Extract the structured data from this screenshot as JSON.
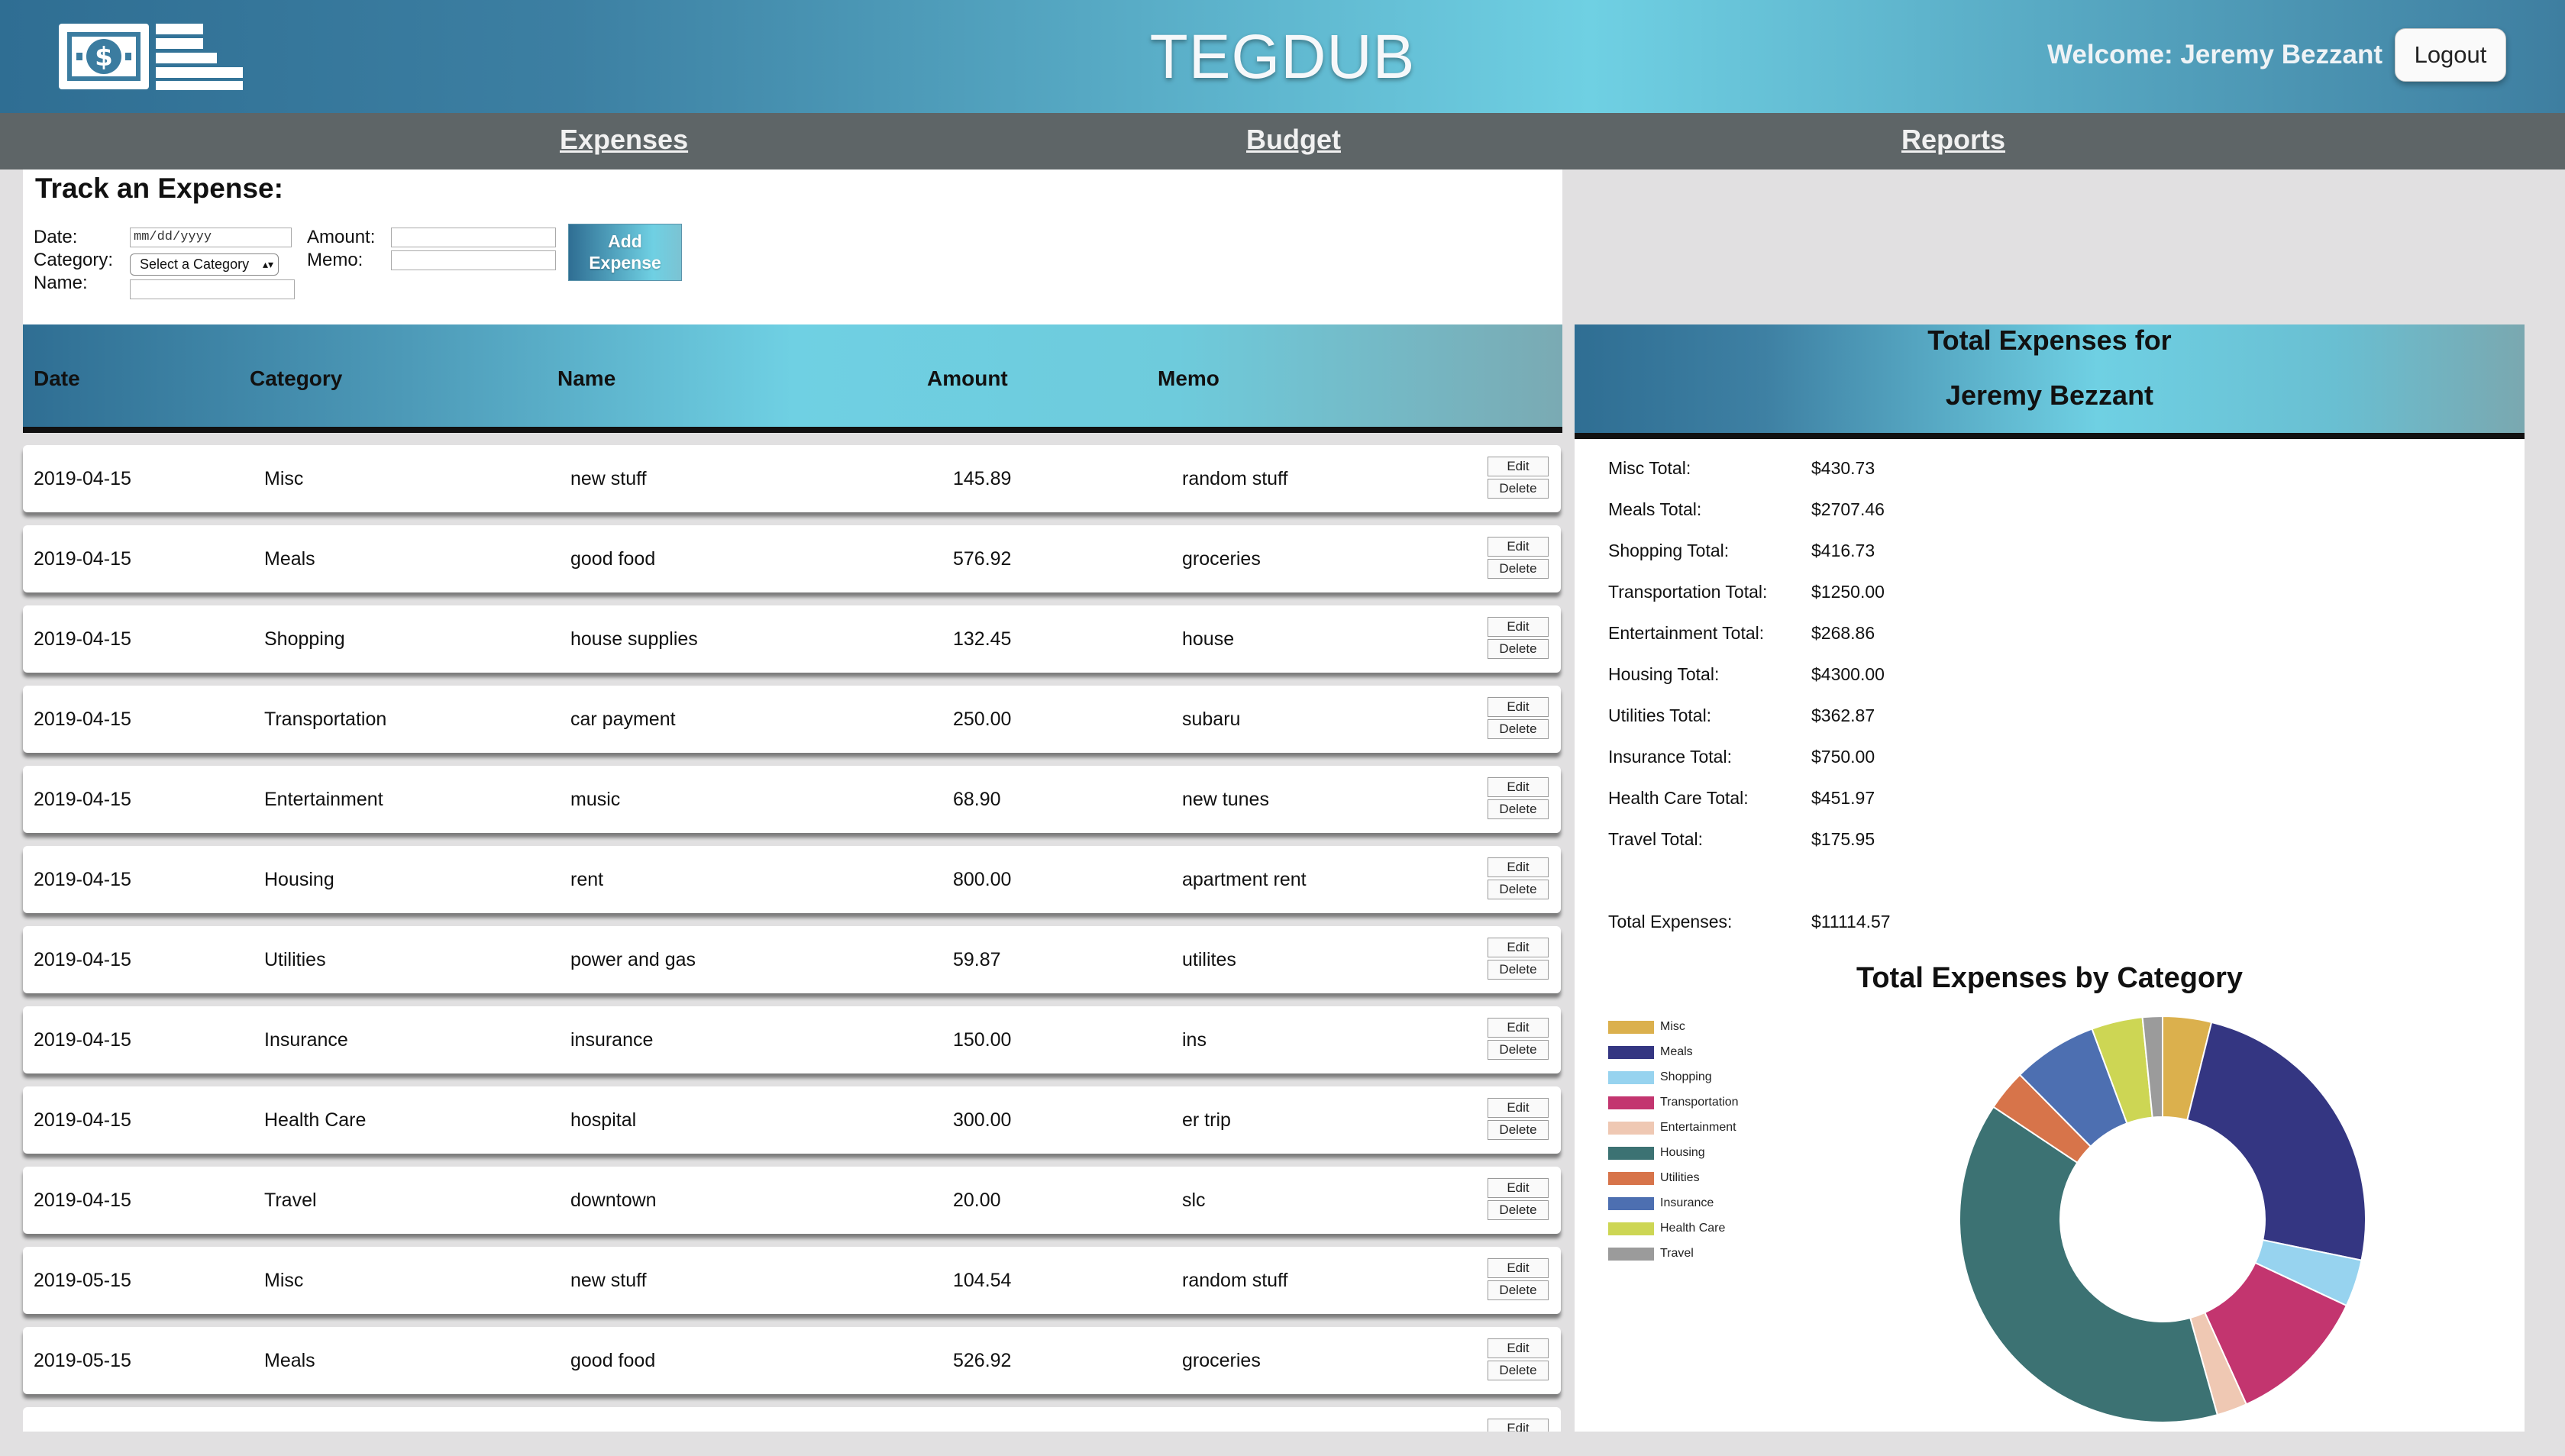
{
  "header": {
    "app_title": "TEGDUB",
    "welcome_text": "Welcome: Jeremy Bezzant",
    "logout_label": "Logout",
    "logo_icon": "money-stack-icon"
  },
  "nav": {
    "expenses": "Expenses",
    "budget": "Budget",
    "reports": "Reports"
  },
  "track_form": {
    "title": "Track an Expense:",
    "date_label": "Date:",
    "category_label": "Category:",
    "name_label": "Name:",
    "amount_label": "Amount:",
    "memo_label": "Memo:",
    "date_placeholder": "mm/dd/yyyy",
    "category_select": "Select a Category",
    "add_button_line1": "Add",
    "add_button_line2": "Expense"
  },
  "table": {
    "headers": {
      "date": "Date",
      "category": "Category",
      "name": "Name",
      "amount": "Amount",
      "memo": "Memo"
    },
    "edit_label": "Edit",
    "delete_label": "Delete",
    "rows": [
      {
        "date": "2019-04-15",
        "category": "Misc",
        "name": "new stuff",
        "amount": "145.89",
        "memo": "random stuff"
      },
      {
        "date": "2019-04-15",
        "category": "Meals",
        "name": "good food",
        "amount": "576.92",
        "memo": "groceries"
      },
      {
        "date": "2019-04-15",
        "category": "Shopping",
        "name": "house supplies",
        "amount": "132.45",
        "memo": "house"
      },
      {
        "date": "2019-04-15",
        "category": "Transportation",
        "name": "car payment",
        "amount": "250.00",
        "memo": "subaru"
      },
      {
        "date": "2019-04-15",
        "category": "Entertainment",
        "name": "music",
        "amount": "68.90",
        "memo": "new tunes"
      },
      {
        "date": "2019-04-15",
        "category": "Housing",
        "name": "rent",
        "amount": "800.00",
        "memo": "apartment rent"
      },
      {
        "date": "2019-04-15",
        "category": "Utilities",
        "name": "power and gas",
        "amount": "59.87",
        "memo": "utilites"
      },
      {
        "date": "2019-04-15",
        "category": "Insurance",
        "name": "insurance",
        "amount": "150.00",
        "memo": "ins"
      },
      {
        "date": "2019-04-15",
        "category": "Health Care",
        "name": "hospital",
        "amount": "300.00",
        "memo": "er trip"
      },
      {
        "date": "2019-04-15",
        "category": "Travel",
        "name": "downtown",
        "amount": "20.00",
        "memo": "slc"
      },
      {
        "date": "2019-05-15",
        "category": "Misc",
        "name": "new stuff",
        "amount": "104.54",
        "memo": "random stuff"
      },
      {
        "date": "2019-05-15",
        "category": "Meals",
        "name": "good food",
        "amount": "526.92",
        "memo": "groceries"
      },
      {
        "date": "",
        "category": "",
        "name": "",
        "amount": "",
        "memo": ""
      }
    ]
  },
  "totals": {
    "title_line1": "Total Expenses for",
    "title_line2": "Jeremy Bezzant",
    "items": [
      {
        "label": "Misc Total:",
        "value": "$430.73"
      },
      {
        "label": "Meals Total:",
        "value": "$2707.46"
      },
      {
        "label": "Shopping Total:",
        "value": "$416.73"
      },
      {
        "label": "Transportation Total:",
        "value": "$1250.00"
      },
      {
        "label": "Entertainment Total:",
        "value": "$268.86"
      },
      {
        "label": "Housing Total:",
        "value": "$4300.00"
      },
      {
        "label": "Utilities Total:",
        "value": "$362.87"
      },
      {
        "label": "Insurance Total:",
        "value": "$750.00"
      },
      {
        "label": "Health Care Total:",
        "value": "$451.97"
      },
      {
        "label": "Travel Total:",
        "value": "$175.95"
      }
    ],
    "grand_label": "Total Expenses:",
    "grand_value": "$11114.57"
  },
  "chart_data": {
    "type": "pie",
    "donut": true,
    "title": "Total Expenses by Category",
    "legend_position": "left",
    "categories": [
      "Misc",
      "Meals",
      "Shopping",
      "Transportation",
      "Entertainment",
      "Housing",
      "Utilities",
      "Insurance",
      "Health Care",
      "Travel"
    ],
    "values": [
      430.73,
      2707.46,
      416.73,
      1250.0,
      268.86,
      4300.0,
      362.87,
      750.0,
      451.97,
      175.95
    ],
    "colors": [
      "#dbb04d",
      "#343682",
      "#97d3ef",
      "#c3356f",
      "#efc8b3",
      "#3c7273",
      "#d7744a",
      "#4d6fb1",
      "#cdd654",
      "#9b9b9b"
    ]
  }
}
